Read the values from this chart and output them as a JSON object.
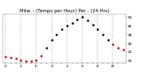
{
  "title": "Milw. - (Temps per Hour) Per - (24 Hrs)",
  "hours": [
    0,
    1,
    2,
    3,
    4,
    5,
    6,
    7,
    8,
    9,
    10,
    11,
    12,
    13,
    14,
    15,
    16,
    17,
    18,
    19,
    20,
    21,
    22,
    23
  ],
  "temps": [
    18,
    17,
    16,
    15,
    14,
    14,
    15,
    19,
    26,
    33,
    38,
    43,
    46,
    49,
    52,
    54,
    51,
    47,
    43,
    38,
    33,
    29,
    26,
    24
  ],
  "dot_colors_red": [
    true,
    true,
    true,
    true,
    true,
    true,
    true,
    true,
    false,
    false,
    false,
    false,
    false,
    false,
    false,
    false,
    false,
    false,
    false,
    false,
    false,
    true,
    true,
    true
  ],
  "ylim": [
    12,
    57
  ],
  "xlim": [
    -0.5,
    23.5
  ],
  "yticks": [
    14,
    22,
    30,
    38,
    46,
    54
  ],
  "xtick_labels": [
    "0",
    "",
    "",
    "1",
    "",
    "",
    "2",
    "",
    "",
    "3",
    "",
    "",
    "4",
    "",
    "",
    "5",
    "",
    "",
    "6",
    "",
    "",
    "7",
    "",
    "",
    "8",
    "",
    "",
    "9",
    "",
    "",
    "0",
    "",
    "",
    "1",
    "",
    "",
    "2",
    "",
    "",
    "3",
    "",
    "",
    "4",
    "",
    "",
    "5",
    "",
    "",
    "6",
    "",
    "",
    "7",
    "",
    "",
    "8",
    "",
    "",
    "9"
  ],
  "grid_x": [
    0,
    3,
    6,
    9,
    12,
    15,
    18,
    21
  ],
  "grid_color": "#888888",
  "bg_color": "#ffffff",
  "red_color": "#cc0000",
  "black_color": "#000000",
  "title_fontsize": 3.8,
  "tick_fontsize": 3.0,
  "marker_size": 1.8
}
